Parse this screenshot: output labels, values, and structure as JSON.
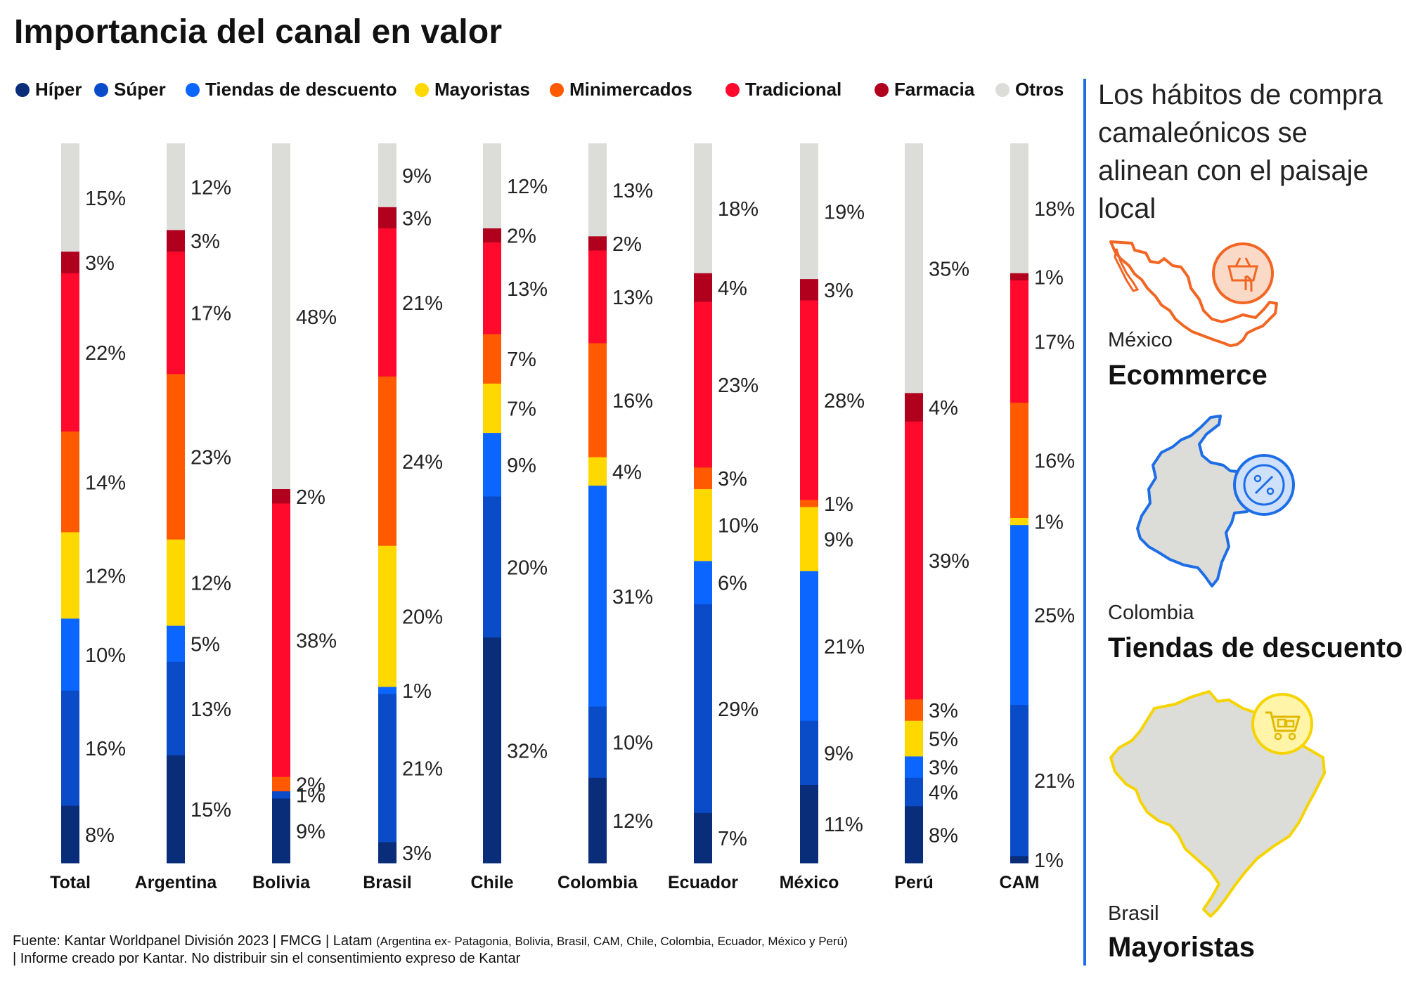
{
  "title": "Importancia del canal en valor",
  "legend": [
    {
      "label": "Híper",
      "color": "#0a2d7a"
    },
    {
      "label": "Súper",
      "color": "#0a4bc8"
    },
    {
      "label": "Tiendas de descuento",
      "color": "#0a66ff"
    },
    {
      "label": "Mayoristas",
      "color": "#ffd800"
    },
    {
      "label": "Minimercados",
      "color": "#ff5a00"
    },
    {
      "label": "Tradicional",
      "color": "#ff0a2d"
    },
    {
      "label": "Farmacia",
      "color": "#b0001e"
    },
    {
      "label": "Otros",
      "color": "#dcdcd9"
    }
  ],
  "chart_data": {
    "type": "bar",
    "stacked": true,
    "orientation": "vertical",
    "categories": [
      "Total",
      "Argentina",
      "Bolivia",
      "Brasil",
      "Chile",
      "Colombia",
      "Ecuador",
      "México",
      "Perú",
      "CAM"
    ],
    "series": [
      {
        "name": "Híper",
        "values": [
          8,
          15,
          9,
          3,
          32,
          12,
          7,
          11,
          8,
          1
        ],
        "labels": [
          "8%",
          "15%",
          "9%",
          "3%",
          "32%",
          "12%",
          "7%",
          "11%",
          "8%",
          "1%"
        ]
      },
      {
        "name": "Súper",
        "values": [
          16,
          13,
          1,
          21,
          20,
          10,
          29,
          9,
          4,
          21
        ],
        "labels": [
          "16%",
          "13%",
          "1%",
          "21%",
          "20%",
          "10%",
          "29%",
          "9%",
          "4%",
          "21%"
        ]
      },
      {
        "name": "Tiendas de descuento",
        "values": [
          10,
          5,
          0,
          1,
          9,
          31,
          6,
          21,
          3,
          25
        ],
        "labels": [
          "10%",
          "5%",
          "",
          "1%",
          "9%",
          "31%",
          "6%",
          "21%",
          "3%",
          "25%"
        ]
      },
      {
        "name": "Mayoristas",
        "values": [
          12,
          12,
          0,
          20,
          7,
          4,
          10,
          9,
          5,
          1
        ],
        "labels": [
          "12%",
          "12%",
          "",
          "20%",
          "7%",
          "4%",
          "10%",
          "9%",
          "5%",
          "1%"
        ]
      },
      {
        "name": "Minimercados",
        "values": [
          14,
          23,
          2,
          24,
          7,
          16,
          3,
          1,
          3,
          16
        ],
        "labels": [
          "14%",
          "23%",
          "2%",
          "24%",
          "7%",
          "16%",
          "3%",
          "1%",
          "3%",
          "16%"
        ]
      },
      {
        "name": "Tradicional",
        "values": [
          22,
          17,
          38,
          21,
          13,
          13,
          23,
          28,
          39,
          17
        ],
        "labels": [
          "22%",
          "17%",
          "38%",
          "21%",
          "13%",
          "13%",
          "23%",
          "28%",
          "39%",
          "17%"
        ]
      },
      {
        "name": "Farmacia",
        "values": [
          3,
          3,
          2,
          3,
          2,
          2,
          4,
          3,
          4,
          1
        ],
        "labels": [
          "3%",
          "3%",
          "2%",
          "3%",
          "2%",
          "2%",
          "4%",
          "3%",
          "4%",
          "1%"
        ]
      },
      {
        "name": "Otros",
        "values": [
          15,
          12,
          48,
          9,
          12,
          13,
          18,
          19,
          35,
          18
        ],
        "labels": [
          "15%",
          "12%",
          "48%",
          "9%",
          "12%",
          "13%",
          "18%",
          "19%",
          "35%",
          "18%"
        ]
      }
    ],
    "ylim": [
      0,
      100
    ],
    "value_unit": "%",
    "grid": false,
    "legend_position": "top"
  },
  "footer": {
    "line1_main": "Fuente: Kantar Worldpanel División 2023 | FMCG | Latam",
    "line1_small": "(Argentina ex- Patagonia, Bolivia, Brasil, CAM, Chile, Colombia, Ecuador, México y Perú)",
    "line2": "| Informe creado por Kantar. No distribuir sin el consentimiento expreso de Kantar"
  },
  "side_panel": {
    "headline_lines": [
      "Los hábitos de compra",
      "camaleónicos se",
      "alinean con el paisaje",
      "local"
    ],
    "callouts": [
      {
        "country": "México",
        "channel": "Ecommerce",
        "map_icon": "mexico-map-icon",
        "badge_icon": "ecommerce-basket-icon",
        "color": "#f26522"
      },
      {
        "country": "Colombia",
        "channel": "Tiendas de descuento",
        "map_icon": "colombia-map-icon",
        "badge_icon": "percent-icon",
        "color": "#1d6ee6"
      },
      {
        "country": "Brasil",
        "channel": "Mayoristas",
        "map_icon": "brazil-map-icon",
        "badge_icon": "shopping-cart-icon",
        "color": "#f5d400"
      }
    ]
  }
}
